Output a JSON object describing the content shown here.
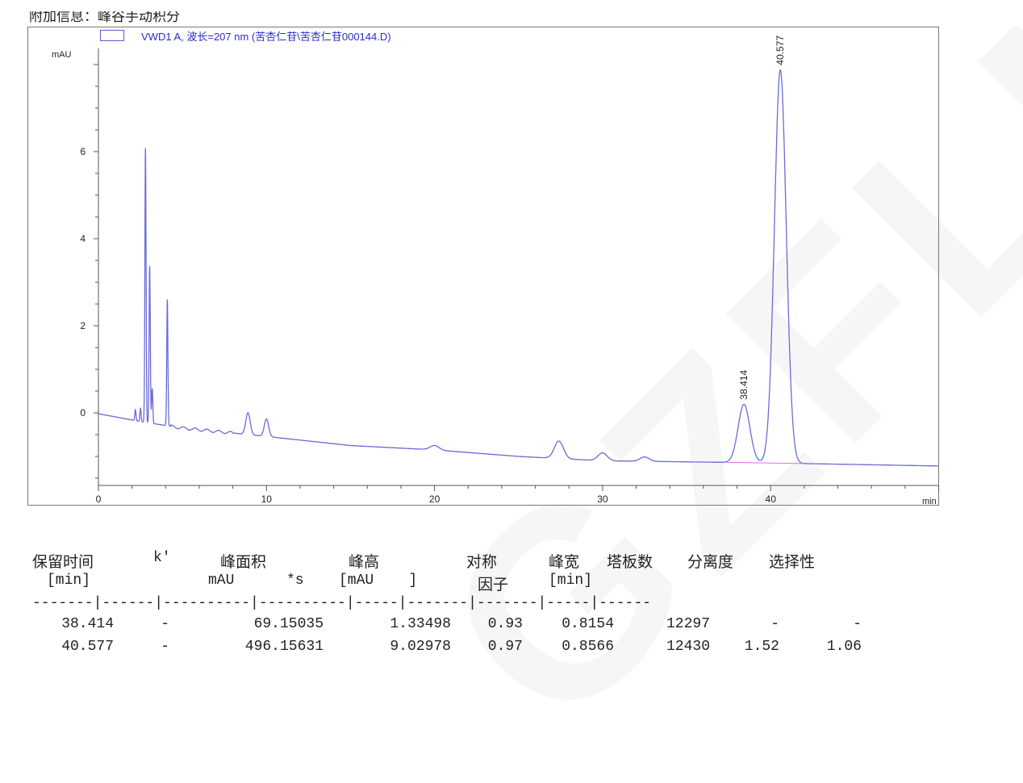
{
  "header": {
    "note": "附加信息：峰谷手动积分"
  },
  "watermark": "GZFLM",
  "chart_data": {
    "type": "line",
    "legend": "VWD1 A, 波长=207 nm (苦杏仁苷\\苦杏仁苷000144.D)",
    "legend_placement": "top-left",
    "ylabel": "mAU",
    "xlabel": "min",
    "xlim": [
      0,
      50
    ],
    "ylim": [
      -1.67,
      8.4
    ],
    "x_ticks": [
      0,
      10,
      20,
      30,
      40
    ],
    "y_ticks": [
      0,
      2,
      4,
      6
    ],
    "grid": false,
    "line_color": "#6b6bd6",
    "baseline_color": "#e070e0",
    "baseline_points": [
      [
        0,
        -0.02
      ],
      [
        2.5,
        -0.2
      ],
      [
        5,
        -0.35
      ],
      [
        9,
        -0.5
      ],
      [
        15,
        -0.75
      ],
      [
        20,
        -0.85
      ],
      [
        25,
        -1.0
      ],
      [
        30,
        -1.1
      ],
      [
        40,
        -1.15
      ],
      [
        50,
        -1.22
      ]
    ],
    "peaks": [
      {
        "rt": 2.2,
        "height": 0.25
      },
      {
        "rt": 2.5,
        "height": 0.3
      },
      {
        "rt": 2.8,
        "height": 6.3
      },
      {
        "rt": 3.05,
        "height": 3.6
      },
      {
        "rt": 3.2,
        "height": 0.8
      },
      {
        "rt": 4.1,
        "height": 2.9
      },
      {
        "rt": 8.9,
        "height": 0.5
      },
      {
        "rt": 10.0,
        "height": 0.4
      },
      {
        "rt": 20.0,
        "height": 0.1
      },
      {
        "rt": 27.4,
        "height": 0.4
      },
      {
        "rt": 30.0,
        "height": 0.18
      },
      {
        "rt": 32.5,
        "height": 0.1
      },
      {
        "rt": 38.414,
        "height": 1.335,
        "label": "38.414"
      },
      {
        "rt": 40.577,
        "height": 9.03,
        "label": "40.577"
      }
    ]
  },
  "table": {
    "headers1": [
      "保留时间",
      "k'",
      "峰面积",
      "峰高",
      "对称",
      "峰宽",
      "塔板数",
      "分离度",
      "选择性"
    ],
    "headers2": [
      "[min]",
      "mAU",
      "*s",
      "[mAU    ]",
      "因子",
      "[min]"
    ],
    "separator": "-------|------|----------|----------|-----|-------|-------|-----|------",
    "rows": [
      [
        "38.414",
        "-",
        "69.15035",
        "1.33498",
        "0.93",
        "0.8154",
        "12297",
        "-",
        "-"
      ],
      [
        "40.577",
        "-",
        "496.15631",
        "9.02978",
        "0.97",
        "0.8566",
        "12430",
        "1.52",
        "1.06"
      ]
    ]
  }
}
